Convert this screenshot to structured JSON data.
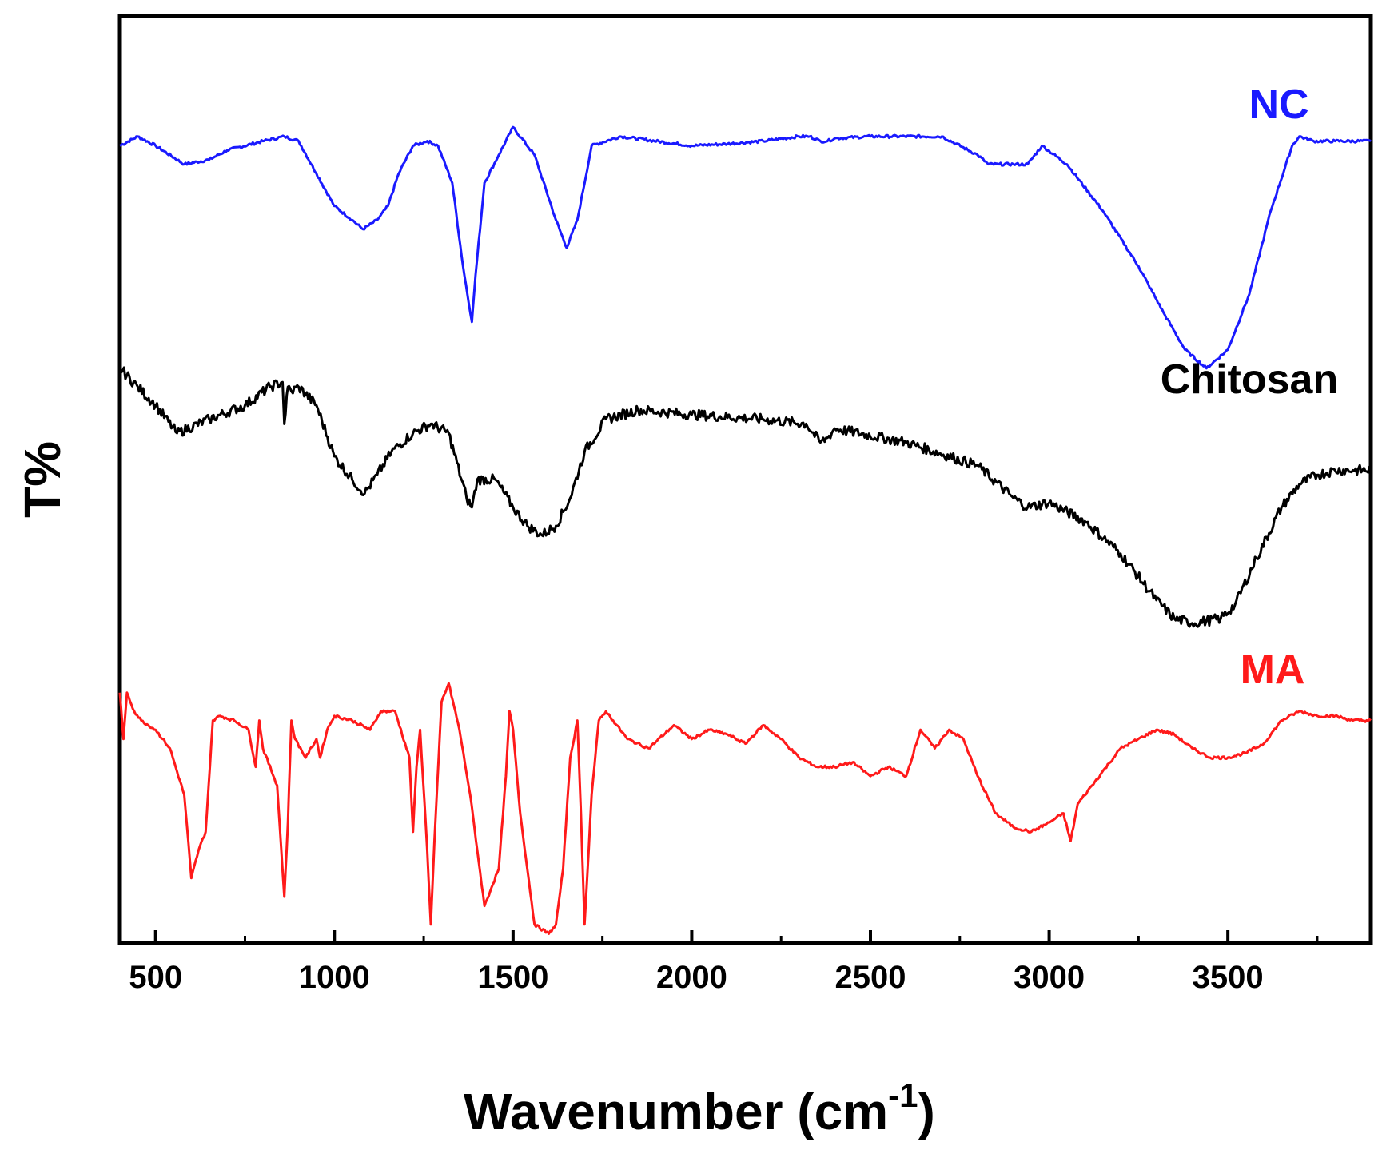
{
  "chart_data": {
    "type": "line",
    "title": "",
    "xlabel": "Wavenumber (cm",
    "xlabel_superscript": "-1",
    "xlabel_suffix": ")",
    "ylabel": "T%",
    "xlim": [
      400,
      3900
    ],
    "ylim": [
      0,
      100
    ],
    "xticks": [
      500,
      1000,
      1500,
      2000,
      2500,
      3000,
      3500
    ],
    "grid": false,
    "legend": "none (labels placed next to each trace)",
    "series": [
      {
        "name": "NC",
        "color": "#1a1aff",
        "label_position": "top-right",
        "x": [
          400,
          450,
          500,
          580,
          650,
          700,
          800,
          860,
          900,
          950,
          1000,
          1050,
          1080,
          1120,
          1150,
          1180,
          1220,
          1260,
          1290,
          1330,
          1360,
          1385,
          1395,
          1420,
          1460,
          1500,
          1560,
          1620,
          1650,
          1680,
          1720,
          1800,
          2000,
          2100,
          2200,
          2300,
          2330,
          2360,
          2380,
          2400,
          2500,
          2700,
          2800,
          2830,
          2860,
          2900,
          2940,
          2980,
          3050,
          3150,
          3250,
          3320,
          3380,
          3440,
          3500,
          3560,
          3620,
          3680,
          3700,
          3740,
          3800,
          3900
        ],
        "y": [
          86,
          87,
          86,
          84,
          84.5,
          85.5,
          86.5,
          87,
          86.5,
          83,
          79.5,
          78,
          77,
          78,
          79.5,
          83,
          86,
          86.5,
          86,
          82,
          73,
          67,
          72,
          82,
          85,
          88,
          85,
          78,
          75,
          78,
          86,
          87,
          86,
          86.2,
          86.5,
          87,
          87,
          86.5,
          86.5,
          86.8,
          87,
          87,
          85,
          84,
          84,
          84,
          84,
          86,
          84,
          79,
          73,
          68,
          64,
          62,
          64,
          70,
          79,
          86,
          87,
          86.5,
          86.5,
          86.5
        ]
      },
      {
        "name": "Chitosan",
        "color": "#000000",
        "label_position": "middle-right",
        "x": [
          400,
          450,
          500,
          560,
          650,
          750,
          820,
          855,
          860,
          870,
          880,
          900,
          950,
          1000,
          1050,
          1085,
          1120,
          1160,
          1220,
          1270,
          1320,
          1370,
          1385,
          1400,
          1450,
          1500,
          1540,
          1580,
          1620,
          1660,
          1700,
          1760,
          1850,
          2000,
          2200,
          2320,
          2360,
          2380,
          2400,
          2600,
          2800,
          2900,
          2940,
          3000,
          3100,
          3200,
          3300,
          3350,
          3400,
          3480,
          3520,
          3580,
          3650,
          3700,
          3750,
          3800,
          3850,
          3900
        ],
        "y": [
          62,
          60,
          58,
          55,
          56.5,
          58,
          60,
          60.5,
          56,
          60,
          59.5,
          60,
          58,
          52.5,
          50,
          48.5,
          50.5,
          53,
          55,
          56,
          55,
          48,
          47,
          50,
          50,
          47,
          45,
          44,
          45,
          48,
          53,
          56.5,
          57.5,
          57,
          56.5,
          56,
          54,
          54.5,
          55.5,
          54,
          51.5,
          48,
          47,
          47.5,
          45.5,
          42,
          37,
          35,
          34.5,
          35,
          36.5,
          41.5,
          47,
          49.5,
          50.5,
          51,
          51,
          51
        ]
      },
      {
        "name": "MA",
        "color": "#ff1a1a",
        "label_position": "lower-right",
        "x": [
          400,
          410,
          420,
          440,
          460,
          500,
          540,
          580,
          600,
          620,
          640,
          660,
          680,
          720,
          760,
          780,
          790,
          800,
          840,
          860,
          870,
          880,
          890,
          920,
          950,
          960,
          980,
          1000,
          1050,
          1100,
          1130,
          1170,
          1210,
          1220,
          1230,
          1240,
          1260,
          1270,
          1280,
          1300,
          1320,
          1350,
          1380,
          1400,
          1420,
          1440,
          1460,
          1480,
          1490,
          1500,
          1520,
          1560,
          1600,
          1620,
          1640,
          1660,
          1680,
          1690,
          1700,
          1720,
          1740,
          1760,
          1780,
          1820,
          1880,
          1950,
          2000,
          2050,
          2100,
          2150,
          2200,
          2250,
          2300,
          2350,
          2400,
          2450,
          2500,
          2550,
          2600,
          2640,
          2680,
          2720,
          2760,
          2800,
          2850,
          2900,
          2950,
          3000,
          3040,
          3060,
          3080,
          3120,
          3200,
          3300,
          3350,
          3400,
          3450,
          3500,
          3550,
          3600,
          3650,
          3700,
          3750,
          3800,
          3850,
          3900
        ],
        "y": [
          27,
          22,
          27,
          25,
          24,
          23,
          21,
          16,
          7,
          10,
          12,
          24,
          24.5,
          24,
          23,
          19,
          24,
          21,
          17,
          5,
          13,
          24,
          22,
          20,
          22,
          20,
          23,
          24.5,
          24,
          23,
          25,
          25,
          20,
          12,
          19,
          23,
          10,
          2,
          11,
          26,
          28,
          23,
          16,
          10,
          4,
          6,
          8,
          18,
          25,
          23,
          14,
          2,
          1,
          2,
          8,
          20,
          24,
          14,
          2,
          16,
          24,
          25,
          24,
          22,
          21,
          23.5,
          22,
          23,
          22.5,
          21.5,
          23.5,
          22,
          20,
          19,
          19,
          19.5,
          18,
          19,
          18,
          23,
          21,
          23,
          22,
          18,
          14,
          12.5,
          12,
          13,
          14,
          11,
          15,
          17,
          21,
          23,
          22.5,
          21,
          20,
          20,
          20.5,
          21.5,
          24,
          25,
          24.5,
          24.5,
          24,
          24
        ]
      }
    ]
  }
}
